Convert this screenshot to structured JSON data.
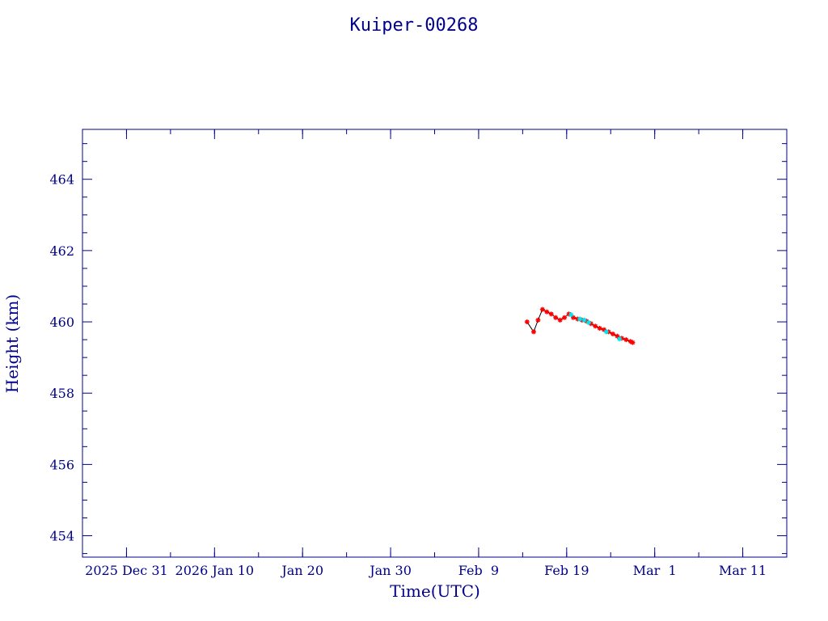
{
  "chart_data": {
    "type": "line",
    "title": "Kuiper-00268",
    "xlabel": "Time(UTC)",
    "ylabel": "Height (km)",
    "x_range": [
      "2025-12-26",
      "2026-03-16"
    ],
    "ylim": [
      453.4,
      465.4
    ],
    "x_tick_labels": [
      {
        "date": "2025-12-31",
        "label": "2025 Dec 31"
      },
      {
        "date": "2026-01-10",
        "label": "2026 Jan 10"
      },
      {
        "date": "2026-01-20",
        "label": "Jan 20"
      },
      {
        "date": "2026-01-30",
        "label": "Jan 30"
      },
      {
        "date": "2026-02-09",
        "label": "Feb  9"
      },
      {
        "date": "2026-02-19",
        "label": "Feb 19"
      },
      {
        "date": "2026-03-01",
        "label": "Mar  1"
      },
      {
        "date": "2026-03-11",
        "label": "Mar 11"
      }
    ],
    "y_ticks": [
      454,
      456,
      458,
      460,
      462,
      464
    ],
    "grid": false,
    "colors": {
      "axis": "#00008b",
      "line": "#000000",
      "marker_primary": "#ff0000",
      "marker_secondary": "#00e5ee"
    },
    "series": [
      {
        "marker_color": "#ff0000",
        "x": [
          "2026-02-14T12:00",
          "2026-02-15T06:00",
          "2026-02-15T18:00",
          "2026-02-16T06:00",
          "2026-02-16T18:00",
          "2026-02-17T06:00",
          "2026-02-17T18:00",
          "2026-02-18T06:00",
          "2026-02-18T18:00",
          "2026-02-19T06:00",
          "2026-02-19T18:00",
          "2026-02-20T06:00",
          "2026-02-20T18:00",
          "2026-02-21T06:00",
          "2026-02-21T18:00",
          "2026-02-22T06:00",
          "2026-02-22T18:00",
          "2026-02-23T06:00",
          "2026-02-23T18:00",
          "2026-02-24T06:00",
          "2026-02-24T18:00",
          "2026-02-25T06:00",
          "2026-02-25T18:00",
          "2026-02-26T06:00",
          "2026-02-26T12:00"
        ],
        "y": [
          460.0,
          459.72,
          460.05,
          460.35,
          460.28,
          460.22,
          460.12,
          460.05,
          460.12,
          460.22,
          460.12,
          460.08,
          460.05,
          460.02,
          459.95,
          459.88,
          459.82,
          459.78,
          459.72,
          459.66,
          459.6,
          459.54,
          459.5,
          459.45,
          459.42
        ]
      },
      {
        "marker_color": "#00e5ee",
        "x": [
          "2026-02-19T12:00",
          "2026-02-20T12:00",
          "2026-02-21T00:00",
          "2026-02-21T12:00",
          "2026-02-23T12:00",
          "2026-02-25T00:00"
        ],
        "y": [
          460.2,
          460.08,
          460.05,
          459.98,
          459.72,
          459.52
        ]
      }
    ]
  }
}
